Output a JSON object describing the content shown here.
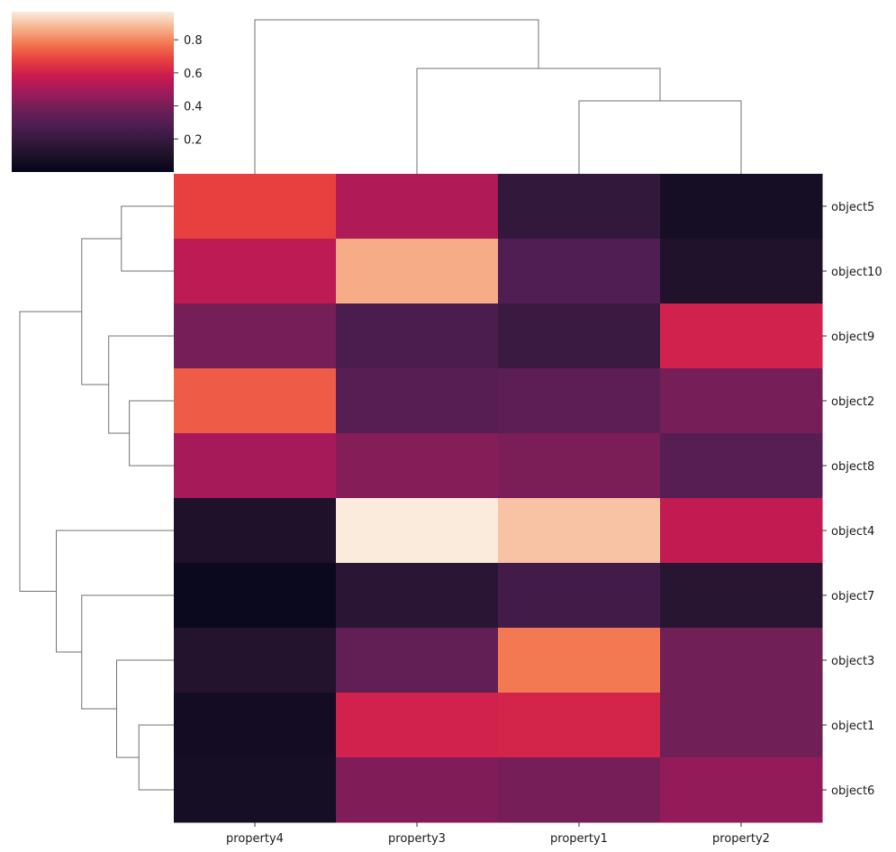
{
  "chart_data": {
    "type": "heatmap",
    "title": "",
    "xlabel": "",
    "ylabel": "",
    "columns": [
      "property4",
      "property3",
      "property1",
      "property2"
    ],
    "rows": [
      "object5",
      "object10",
      "object9",
      "object2",
      "object8",
      "object4",
      "object7",
      "object3",
      "object1",
      "object6"
    ],
    "values": [
      [
        0.68,
        0.52,
        0.18,
        0.07
      ],
      [
        0.55,
        0.86,
        0.29,
        0.11
      ],
      [
        0.4,
        0.27,
        0.21,
        0.6
      ],
      [
        0.73,
        0.31,
        0.33,
        0.4
      ],
      [
        0.5,
        0.43,
        0.41,
        0.31
      ],
      [
        0.1,
        0.97,
        0.9,
        0.56
      ],
      [
        0.03,
        0.15,
        0.24,
        0.14
      ],
      [
        0.12,
        0.34,
        0.78,
        0.39
      ],
      [
        0.06,
        0.6,
        0.61,
        0.39
      ],
      [
        0.07,
        0.42,
        0.4,
        0.46
      ]
    ],
    "colormap": "rocket",
    "colorbar": {
      "vmin": 0.0,
      "vmax": 0.97,
      "ticks": [
        0.2,
        0.4,
        0.6,
        0.8
      ],
      "tick_labels": [
        "0.2",
        "0.4",
        "0.6",
        "0.8"
      ]
    },
    "col_dendrogram": {
      "merges": [
        {
          "left": "property2",
          "right": "property1",
          "height": 0.45
        },
        {
          "left": "cluster-1",
          "right": "property3",
          "height": 0.65
        },
        {
          "left": "cluster-2",
          "right": "property4",
          "height": 0.95
        }
      ]
    },
    "row_dendrogram": {
      "merges": [
        {
          "left": "object5",
          "right": "object10",
          "height": 0.33
        },
        {
          "left": "object2",
          "right": "object8",
          "height": 0.28
        },
        {
          "left": "object9",
          "right": "cluster-2",
          "height": 0.41
        },
        {
          "left": "cluster-1",
          "right": "cluster-3",
          "height": 0.58
        },
        {
          "left": "object1",
          "right": "object6",
          "height": 0.22
        },
        {
          "left": "object3",
          "right": "cluster-5",
          "height": 0.36
        },
        {
          "left": "object7",
          "right": "cluster-6",
          "height": 0.58
        },
        {
          "left": "object4",
          "right": "cluster-7",
          "height": 0.74
        },
        {
          "left": "cluster-4",
          "right": "cluster-8",
          "height": 0.97
        }
      ]
    }
  }
}
